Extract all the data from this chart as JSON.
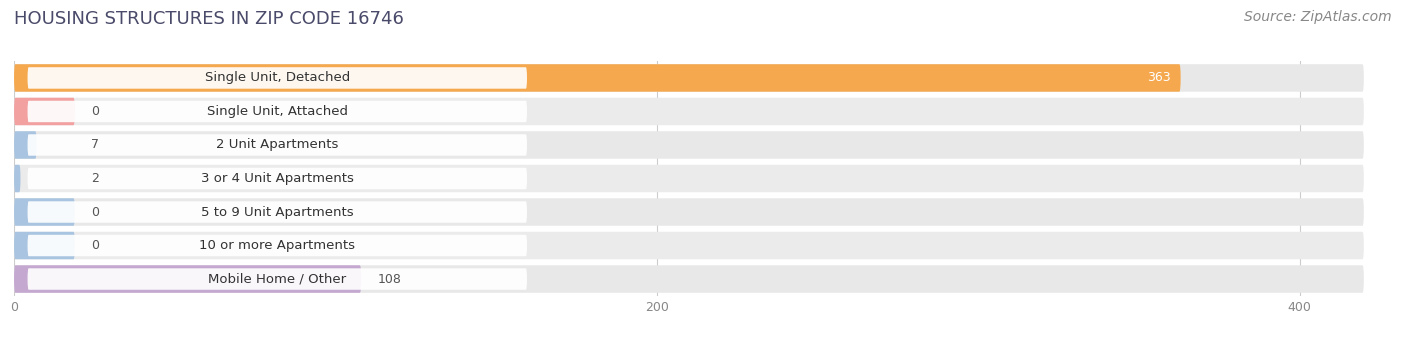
{
  "title": "HOUSING STRUCTURES IN ZIP CODE 16746",
  "source": "Source: ZipAtlas.com",
  "categories": [
    "Single Unit, Detached",
    "Single Unit, Attached",
    "2 Unit Apartments",
    "3 or 4 Unit Apartments",
    "5 to 9 Unit Apartments",
    "10 or more Apartments",
    "Mobile Home / Other"
  ],
  "values": [
    363,
    0,
    7,
    2,
    0,
    0,
    108
  ],
  "bar_colors": [
    "#F5A84D",
    "#F2A0A0",
    "#A8C4E0",
    "#A8C4E0",
    "#A8C4E0",
    "#A8C4E0",
    "#C4A8D0"
  ],
  "xlim": [
    0,
    420
  ],
  "xticks": [
    0,
    200,
    400
  ],
  "row_bg_color": "#e8e8e8",
  "row_bg_color_alt": "#f0f0f0",
  "background_color": "#ffffff",
  "title_fontsize": 13,
  "source_fontsize": 10,
  "label_fontsize": 9.5,
  "value_fontsize": 9,
  "title_color": "#4a4a6a",
  "source_color": "#888888",
  "label_color": "#333333"
}
